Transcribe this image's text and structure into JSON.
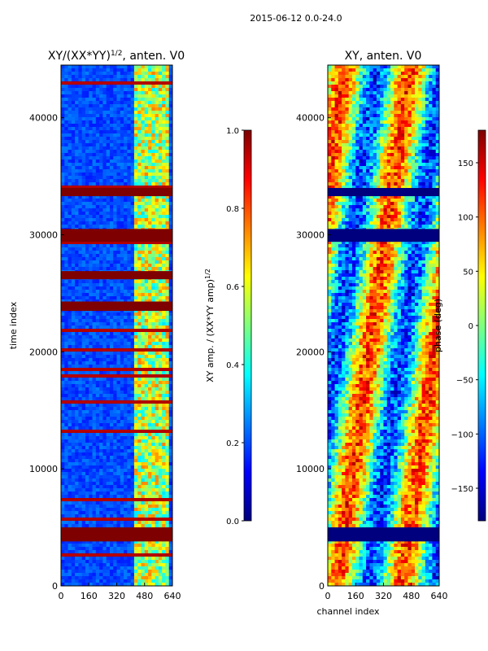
{
  "suptitle": "2015-06-12 0.0-24.0",
  "chart_data": [
    {
      "type": "heatmap",
      "title_main": "XY/(XX*YY)",
      "title_sup": "1/2",
      "title_tail": ", anten. V0",
      "ylabel": "time index",
      "xlabel": "",
      "xlim": [
        0,
        640
      ],
      "ylim": [
        0,
        44500
      ],
      "x_ticks": [
        0,
        160,
        320,
        480,
        640
      ],
      "y_ticks": [
        0,
        10000,
        20000,
        30000,
        40000
      ],
      "colormap": "jet",
      "colorbar": {
        "label_main": "XY amp. / (XX*YY amp)",
        "label_sup": "1/2",
        "range": [
          0.0,
          1.0
        ],
        "ticks": [
          "0.0",
          "0.2",
          "0.4",
          "0.6",
          "0.8",
          "1.0"
        ],
        "tick_values": [
          0.0,
          0.2,
          0.4,
          0.6,
          0.8,
          1.0
        ]
      },
      "saturated_time_bands": [
        [
          3800,
          5000
        ],
        [
          23500,
          24300
        ],
        [
          26200,
          26900
        ],
        [
          29400,
          30500
        ],
        [
          33300,
          34000
        ]
      ],
      "background_level": 0.15,
      "bright_channel_range": [
        420,
        620
      ]
    },
    {
      "type": "heatmap",
      "title_main": "XY, anten. V0",
      "ylabel": "",
      "xlabel": "channel index",
      "xlim": [
        0,
        640
      ],
      "ylim": [
        0,
        44500
      ],
      "x_ticks": [
        0,
        160,
        320,
        480,
        640
      ],
      "y_ticks": [
        0,
        10000,
        20000,
        30000,
        40000
      ],
      "colormap": "jet",
      "colorbar": {
        "label_main": "phase (deg)",
        "range": [
          -180,
          180
        ],
        "ticks": [
          "−150",
          "−100",
          "−50",
          "0",
          "50",
          "100",
          "150"
        ],
        "tick_values": [
          -150,
          -100,
          -50,
          0,
          50,
          100,
          150
        ]
      },
      "masked_time_bands": [
        [
          3800,
          5000
        ],
        [
          29400,
          30500
        ],
        [
          33300,
          34000
        ]
      ]
    }
  ],
  "colors": {
    "jet": [
      "#00007f",
      "#0000ff",
      "#007fff",
      "#00ffff",
      "#7fff7f",
      "#ffff00",
      "#ff7f00",
      "#ff0000",
      "#7f0000"
    ],
    "axes": "#000000",
    "background": "#ffffff"
  }
}
